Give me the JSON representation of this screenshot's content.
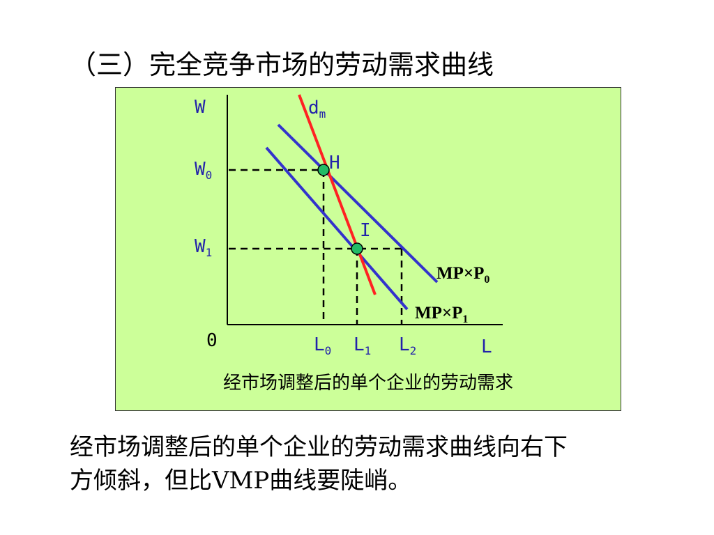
{
  "title": "（三）完全竞争市场的劳动需求曲线",
  "diagram": {
    "axis": {
      "y_label": "W",
      "x_label": "L",
      "origin": "0"
    },
    "wage_levels": [
      {
        "base": "W",
        "sub": "0"
      },
      {
        "base": "W",
        "sub": "1"
      }
    ],
    "labor_levels": [
      {
        "base": "L",
        "sub": "0"
      },
      {
        "base": "L",
        "sub": "1"
      },
      {
        "base": "L",
        "sub": "2"
      }
    ],
    "points": [
      {
        "label": "H"
      },
      {
        "label": "I"
      }
    ],
    "curves": {
      "dm": {
        "base": "d",
        "sub": "m",
        "color": "#ff2222"
      },
      "mp_p0": {
        "base": "MP×P",
        "sub": "0",
        "color": "#3333cc"
      },
      "mp_p1": {
        "base": "MP×P",
        "sub": "1",
        "color": "#3333cc"
      }
    },
    "point_color": "#22bb66",
    "background": "#ccff99",
    "caption": "经市场调整后的单个企业的劳动需求"
  },
  "conclusion": {
    "line1": "经市场调整后的单个企业的劳动需求曲线向右下",
    "line2": "方倾斜，但比VMP曲线要陡峭。"
  }
}
